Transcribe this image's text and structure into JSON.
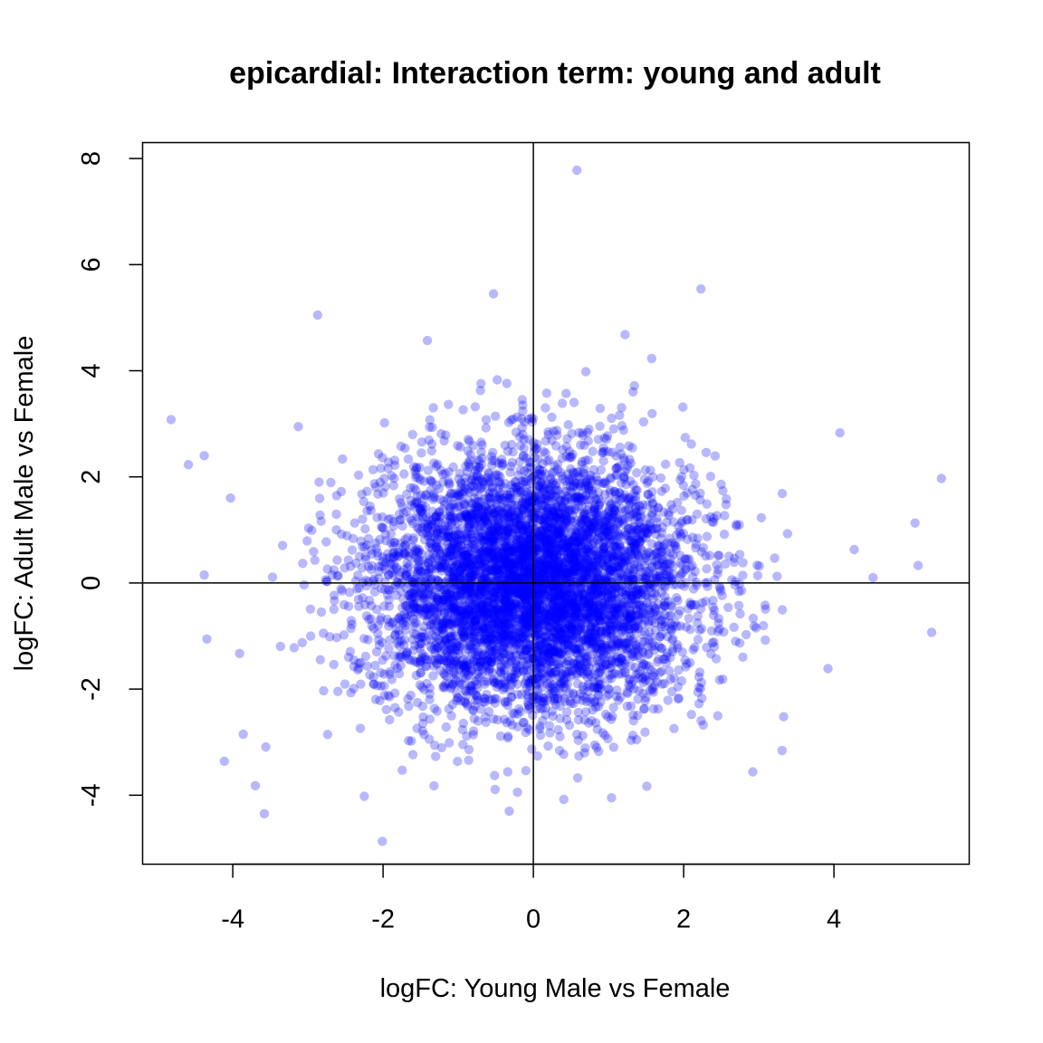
{
  "chart_data": {
    "type": "scatter",
    "title": "epicardial: Interaction term: young and adult",
    "xlabel": "logFC: Young Male vs Female",
    "ylabel": "logFC: Adult Male vs Female",
    "xlim": [
      -5.2,
      5.8
    ],
    "ylim": [
      -5.3,
      8.3
    ],
    "xticks": [
      -4,
      -2,
      0,
      2,
      4
    ],
    "xtick_labels": [
      "-4",
      "-2",
      "0",
      "2",
      "4"
    ],
    "yticks": [
      -4,
      -2,
      0,
      2,
      4,
      6,
      8
    ],
    "ytick_labels": [
      "-4",
      "-2",
      "0",
      "2",
      "4",
      "6",
      "8"
    ],
    "reference_lines": {
      "horizontal": 0,
      "vertical": 0
    },
    "grid": false,
    "point_color": "#0000ff",
    "point_alpha": 0.28,
    "approx_point_count": 6000,
    "distribution": {
      "center": [
        0,
        0
      ],
      "sd_x": 1.05,
      "sd_y": 1.2
    },
    "notable_points": [
      {
        "x": 0.58,
        "y": 7.78
      },
      {
        "x": 2.23,
        "y": 5.54
      },
      {
        "x": -0.53,
        "y": 5.45
      },
      {
        "x": -2.87,
        "y": 5.05
      },
      {
        "x": 1.22,
        "y": 4.68
      },
      {
        "x": -1.41,
        "y": 4.57
      },
      {
        "x": -4.82,
        "y": 3.08
      },
      {
        "x": 4.08,
        "y": 2.83
      },
      {
        "x": 5.43,
        "y": 1.97
      },
      {
        "x": -4.38,
        "y": 2.4
      },
      {
        "x": -4.59,
        "y": 2.23
      },
      {
        "x": -4.03,
        "y": 1.6
      },
      {
        "x": 5.08,
        "y": 1.13
      },
      {
        "x": 4.27,
        "y": 0.63
      },
      {
        "x": 5.12,
        "y": 0.33
      },
      {
        "x": -4.38,
        "y": 0.15
      },
      {
        "x": 4.52,
        "y": 0.1
      },
      {
        "x": 5.3,
        "y": -0.93
      },
      {
        "x": -3.91,
        "y": -1.33
      },
      {
        "x": -3.86,
        "y": -2.85
      },
      {
        "x": -3.56,
        "y": -3.09
      },
      {
        "x": -3.7,
        "y": -3.82
      },
      {
        "x": -3.58,
        "y": -4.35
      },
      {
        "x": -2.25,
        "y": -4.02
      },
      {
        "x": -2.01,
        "y": -4.87
      },
      {
        "x": -0.32,
        "y": -4.3
      },
      {
        "x": 1.04,
        "y": -4.05
      },
      {
        "x": 1.51,
        "y": -3.83
      },
      {
        "x": 2.92,
        "y": -3.56
      },
      {
        "x": 3.33,
        "y": -2.52
      }
    ]
  }
}
